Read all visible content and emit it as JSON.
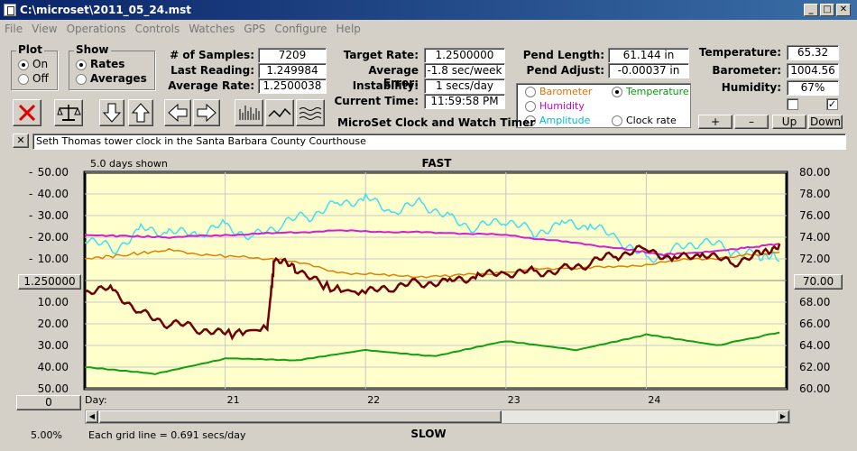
{
  "window": {
    "title": "C:\\microset\\2011_05_24.mst"
  },
  "menu": [
    "File",
    "View",
    "Operations",
    "Controls",
    "Watches",
    "GPS",
    "Configure",
    "Help"
  ],
  "plot": {
    "title": "Plot",
    "options": [
      "On",
      "Off"
    ],
    "selected": "On"
  },
  "show": {
    "title": "Show",
    "options": [
      "Rates",
      "Averages"
    ],
    "selected": "Rates"
  },
  "stats": [
    {
      "label": "# of Samples:",
      "value": "7209"
    },
    {
      "label": "Last Reading:",
      "value": "1.249984"
    },
    {
      "label": "Average Rate:",
      "value": "1.2500038"
    }
  ],
  "target": [
    {
      "label": "Target Rate:",
      "value": "1.2500000"
    },
    {
      "label": "Average Error:",
      "value": "-1.8 sec/week"
    },
    {
      "label": "Instability:",
      "value": "1 secs/day"
    },
    {
      "label": "Current Time:",
      "value": "11:59:58 PM"
    }
  ],
  "pend": [
    {
      "label": "Pend Length:",
      "value": "61.144 in"
    },
    {
      "label": "Pend Adjust:",
      "value": "-0.00037 in"
    }
  ],
  "env": [
    {
      "label": "Temperature:",
      "value": "65.32"
    },
    {
      "label": "Barometer:",
      "value": "1004.56"
    },
    {
      "label": "Humidity:",
      "value": "67%"
    }
  ],
  "app_label": "MicroSet Clock and Watch Timer",
  "sensor_select": {
    "options": [
      {
        "label": "Barometer",
        "color": "#e07000",
        "checked": false
      },
      {
        "label": "Temperature",
        "color": "#00a000",
        "checked": true
      },
      {
        "label": "Humidity",
        "color": "#d000d0",
        "checked": false
      },
      {
        "label": "Amplitude",
        "color": "#00c8e0",
        "checked": false
      },
      {
        "label": "Clock rate",
        "color": "#000000",
        "checked": false
      }
    ]
  },
  "env_buttons": [
    "+",
    "–",
    "Up",
    "Down"
  ],
  "env_checks": [
    false,
    true
  ],
  "description": {
    "close": "✕",
    "text": "Seth Thomas tower clock in the Santa Barbara County Courthouse"
  },
  "chart_data": {
    "type": "line",
    "top_label": "FAST",
    "bottom_label": "SLOW",
    "days_shown": "5.0 days shown",
    "grid_note": "Each grid line = 0.691 secs/day",
    "zoom": "5.00%",
    "xlabel": "Day:",
    "x_ticks": [
      "21",
      "22",
      "23",
      "24"
    ],
    "y_left_ticks": [
      "50.00",
      "40.00",
      "30.00",
      "20.00",
      "10.00",
      "",
      "10.00",
      "20.00",
      "30.00",
      "40.00",
      "50.00"
    ],
    "y_right_ticks": [
      "80.00",
      "78.00",
      "76.00",
      "74.00",
      "72.00",
      "70.00",
      "68.00",
      "66.00",
      "64.00",
      "62.00",
      "60.00"
    ],
    "center_left": "1.250000",
    "center_right": "70.00",
    "bottom_left_button": "0",
    "xlim": [
      20.0,
      25.0
    ],
    "ylim": [
      -50,
      50
    ],
    "colors": {
      "rate": "#700000",
      "temperature": "#10a010",
      "humidity": "#d020d0",
      "barometer": "#e08000",
      "amplitude": "#40e0f0"
    },
    "series": [
      {
        "key": "amplitude",
        "points": [
          [
            20,
            20
          ],
          [
            20.2,
            14
          ],
          [
            20.4,
            24
          ],
          [
            20.6,
            22
          ],
          [
            20.8,
            21
          ],
          [
            21,
            26
          ],
          [
            21.2,
            20
          ],
          [
            21.4,
            26
          ],
          [
            21.6,
            30
          ],
          [
            21.8,
            36
          ],
          [
            22,
            38
          ],
          [
            22.2,
            31
          ],
          [
            22.4,
            36
          ],
          [
            22.6,
            29
          ],
          [
            22.8,
            24
          ],
          [
            23,
            28
          ],
          [
            23.2,
            22
          ],
          [
            23.4,
            27
          ],
          [
            23.6,
            25
          ],
          [
            23.8,
            19
          ],
          [
            24,
            10
          ],
          [
            24.2,
            14
          ],
          [
            24.4,
            18
          ],
          [
            24.6,
            14
          ],
          [
            24.8,
            12
          ],
          [
            24.95,
            9
          ]
        ]
      },
      {
        "key": "humidity",
        "points": [
          [
            20,
            21
          ],
          [
            20.3,
            20.5
          ],
          [
            20.6,
            20
          ],
          [
            21,
            21
          ],
          [
            21.4,
            22
          ],
          [
            21.8,
            23
          ],
          [
            22.2,
            22.5
          ],
          [
            22.6,
            22
          ],
          [
            23,
            21
          ],
          [
            23.4,
            18
          ],
          [
            23.8,
            15
          ],
          [
            24.1,
            12
          ],
          [
            24.4,
            13
          ],
          [
            24.7,
            15
          ],
          [
            24.95,
            17
          ]
        ]
      },
      {
        "key": "barometer",
        "points": [
          [
            20,
            10
          ],
          [
            20.3,
            12
          ],
          [
            20.6,
            14
          ],
          [
            21,
            11
          ],
          [
            21.4,
            10
          ],
          [
            21.8,
            4
          ],
          [
            22.2,
            2
          ],
          [
            22.6,
            2
          ],
          [
            23,
            4
          ],
          [
            23.4,
            6
          ],
          [
            23.8,
            6
          ],
          [
            24.2,
            9
          ],
          [
            24.6,
            11
          ],
          [
            24.95,
            13
          ]
        ]
      },
      {
        "key": "rate",
        "points": [
          [
            20,
            -5
          ],
          [
            20.2,
            -4
          ],
          [
            20.4,
            -15
          ],
          [
            20.6,
            -20
          ],
          [
            20.8,
            -22
          ],
          [
            21,
            -25
          ],
          [
            21.3,
            -22
          ],
          [
            21.35,
            9
          ],
          [
            21.5,
            6
          ],
          [
            21.7,
            -3
          ],
          [
            22,
            -6
          ],
          [
            22.2,
            -3
          ],
          [
            22.4,
            -1
          ],
          [
            22.6,
            0
          ],
          [
            22.8,
            2
          ],
          [
            23,
            3
          ],
          [
            23.2,
            4
          ],
          [
            23.4,
            5
          ],
          [
            23.6,
            8
          ],
          [
            23.8,
            12
          ],
          [
            24,
            15
          ],
          [
            24.2,
            10
          ],
          [
            24.4,
            12
          ],
          [
            24.6,
            8
          ],
          [
            24.8,
            12
          ],
          [
            24.95,
            17
          ]
        ]
      },
      {
        "key": "temperature",
        "points": [
          [
            20,
            -40
          ],
          [
            20.5,
            -43
          ],
          [
            21,
            -36
          ],
          [
            21.5,
            -37
          ],
          [
            22,
            -32
          ],
          [
            22.5,
            -35
          ],
          [
            23,
            -28
          ],
          [
            23.5,
            -32
          ],
          [
            24,
            -25
          ],
          [
            24.5,
            -30
          ],
          [
            24.95,
            -24
          ]
        ]
      }
    ]
  }
}
